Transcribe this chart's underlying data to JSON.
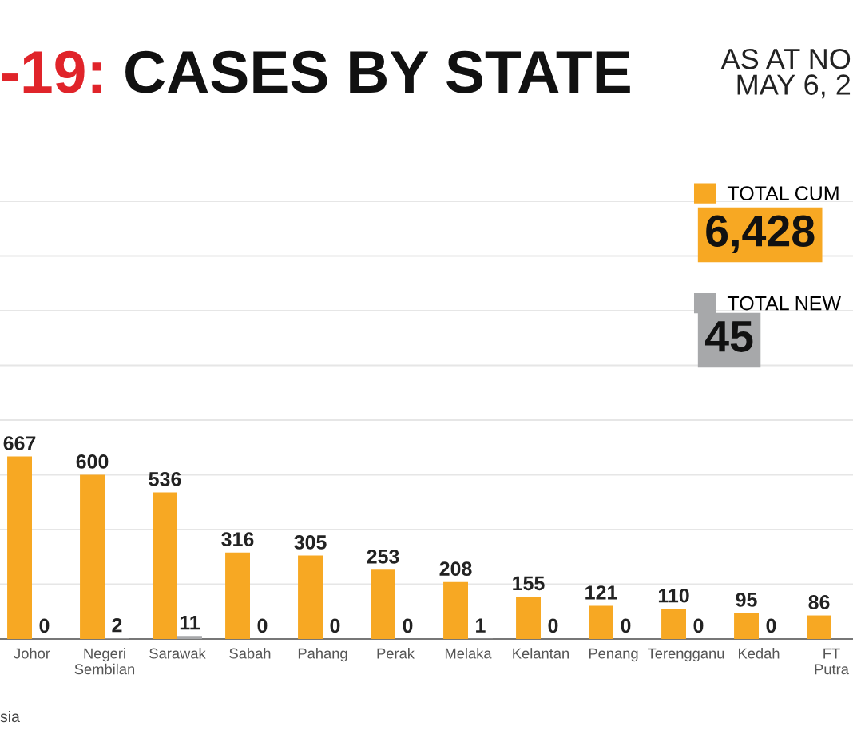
{
  "chart_data": {
    "type": "bar",
    "title": "-19: CASES BY STATE",
    "subtitle": "AS AT NO\nMAY 6, 2",
    "categories": [
      "Johor",
      "Negeri\nSembilan",
      "Sarawak",
      "Sabah",
      "Pahang",
      "Perak",
      "Melaka",
      "Kelantan",
      "Penang",
      "Terengganu",
      "Kedah",
      "FT\nPutra"
    ],
    "series": [
      {
        "name": "TOTAL CUM",
        "color": "#f7a823",
        "values": [
          667,
          600,
          536,
          316,
          305,
          253,
          208,
          155,
          121,
          110,
          95,
          86
        ]
      },
      {
        "name": "TOTAL NEW",
        "color": "#a7a8aa",
        "values": [
          0,
          2,
          11,
          0,
          0,
          0,
          1,
          0,
          0,
          0,
          0,
          null
        ]
      }
    ],
    "ylim": [
      0,
      1600
    ],
    "yticks": [
      {
        "value": 0,
        "label": null
      },
      {
        "value": 200,
        "label": null
      },
      {
        "value": 400,
        "label": null
      },
      {
        "value": 600,
        "label": null
      },
      {
        "value": 800,
        "label": null
      },
      {
        "value": 1000,
        "label": null
      },
      {
        "value": 1200,
        "label": null
      },
      {
        "value": 1400,
        "label": null
      },
      {
        "value": 1600,
        "label": null
      }
    ],
    "grid": "y",
    "legend": "top right",
    "data_labels": true,
    "annotations": [
      "6,428",
      "45",
      "sia"
    ]
  }
}
